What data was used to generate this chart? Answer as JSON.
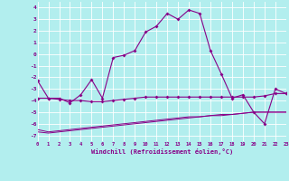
{
  "xlabel": "Windchill (Refroidissement éolien,°C)",
  "x": [
    0,
    1,
    2,
    3,
    4,
    5,
    6,
    7,
    8,
    9,
    10,
    11,
    12,
    13,
    14,
    15,
    16,
    17,
    18,
    19,
    20,
    21,
    22,
    23
  ],
  "line1": [
    -2.3,
    -3.8,
    -3.8,
    -4.2,
    -3.5,
    -2.2,
    -3.8,
    -0.3,
    -0.1,
    0.3,
    1.9,
    2.4,
    3.5,
    3.0,
    3.8,
    3.5,
    0.3,
    -1.7,
    -3.8,
    -3.5,
    -5.0,
    -6.0,
    -3.0,
    -3.4
  ],
  "line2": [
    -3.8,
    -3.8,
    -3.9,
    -4.0,
    -4.0,
    -4.1,
    -4.1,
    -4.0,
    -3.9,
    -3.8,
    -3.7,
    -3.7,
    -3.7,
    -3.7,
    -3.7,
    -3.7,
    -3.7,
    -3.7,
    -3.7,
    -3.7,
    -3.7,
    -3.6,
    -3.4,
    -3.4
  ],
  "line3": [
    -6.5,
    -6.7,
    -6.6,
    -6.5,
    -6.4,
    -6.3,
    -6.2,
    -6.1,
    -6.0,
    -5.9,
    -5.8,
    -5.7,
    -5.6,
    -5.5,
    -5.4,
    -5.4,
    -5.3,
    -5.2,
    -5.2,
    -5.1,
    -5.0,
    -5.0,
    -5.0,
    -5.0
  ],
  "line4": [
    -6.7,
    -6.8,
    -6.7,
    -6.6,
    -6.5,
    -6.4,
    -6.3,
    -6.2,
    -6.1,
    -6.0,
    -5.9,
    -5.8,
    -5.7,
    -5.6,
    -5.5,
    -5.4,
    -5.3,
    -5.3,
    -5.2,
    -5.1,
    -5.0,
    -5.0,
    -5.0,
    -5.0
  ],
  "purple": "#880088",
  "bg_color": "#b2eeee",
  "grid_color": "#c8e8e8",
  "ylim": [
    -7.5,
    4.5
  ],
  "yticks": [
    -7,
    -6,
    -5,
    -4,
    -3,
    -2,
    -1,
    0,
    1,
    2,
    3,
    4
  ],
  "text_color": "#880088"
}
